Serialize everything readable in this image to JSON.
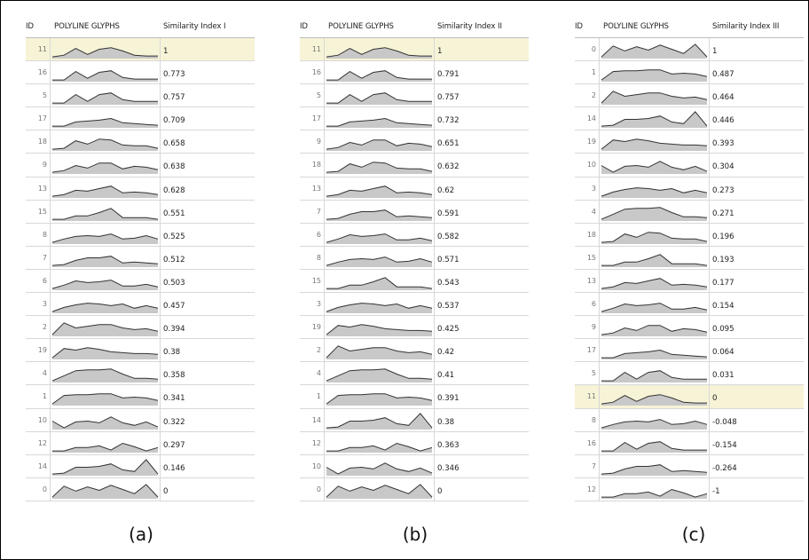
{
  "colors": {
    "glyph_fill": "#c8c8c8",
    "glyph_stroke": "#333333",
    "highlight": "#f7f3d6"
  },
  "panels": [
    {
      "caption": "(a)",
      "header": {
        "id": "ID",
        "glyphs": "POLYLINE GLYPHS",
        "similarity": "Similarity Index I"
      },
      "rows": [
        {
          "id": "11",
          "sim": "1",
          "hl": true
        },
        {
          "id": "16",
          "sim": "0.773"
        },
        {
          "id": "5",
          "sim": "0.757"
        },
        {
          "id": "17",
          "sim": "0.709"
        },
        {
          "id": "18",
          "sim": "0.658"
        },
        {
          "id": "9",
          "sim": "0.638"
        },
        {
          "id": "13",
          "sim": "0.628"
        },
        {
          "id": "15",
          "sim": "0.551"
        },
        {
          "id": "8",
          "sim": "0.525"
        },
        {
          "id": "7",
          "sim": "0.512"
        },
        {
          "id": "6",
          "sim": "0.503"
        },
        {
          "id": "3",
          "sim": "0.457"
        },
        {
          "id": "2",
          "sim": "0.394"
        },
        {
          "id": "19",
          "sim": "0.38"
        },
        {
          "id": "4",
          "sim": "0.358"
        },
        {
          "id": "1",
          "sim": "0.341"
        },
        {
          "id": "10",
          "sim": "0.322"
        },
        {
          "id": "12",
          "sim": "0.297"
        },
        {
          "id": "14",
          "sim": "0.146"
        },
        {
          "id": "0",
          "sim": "0"
        }
      ]
    },
    {
      "caption": "(b)",
      "header": {
        "id": "ID",
        "glyphs": "POLYLINE GLYPHS",
        "similarity": "Similarity Index II"
      },
      "rows": [
        {
          "id": "11",
          "sim": "1",
          "hl": true
        },
        {
          "id": "16",
          "sim": "0.791"
        },
        {
          "id": "5",
          "sim": "0.757"
        },
        {
          "id": "17",
          "sim": "0.732"
        },
        {
          "id": "9",
          "sim": "0.651"
        },
        {
          "id": "18",
          "sim": "0.632"
        },
        {
          "id": "13",
          "sim": "0.62"
        },
        {
          "id": "7",
          "sim": "0.591"
        },
        {
          "id": "6",
          "sim": "0.582"
        },
        {
          "id": "8",
          "sim": "0.571"
        },
        {
          "id": "15",
          "sim": "0.543"
        },
        {
          "id": "3",
          "sim": "0.537"
        },
        {
          "id": "19",
          "sim": "0.425"
        },
        {
          "id": "2",
          "sim": "0.42"
        },
        {
          "id": "4",
          "sim": "0.41"
        },
        {
          "id": "1",
          "sim": "0.391"
        },
        {
          "id": "14",
          "sim": "0.38"
        },
        {
          "id": "12",
          "sim": "0.363"
        },
        {
          "id": "10",
          "sim": "0.346"
        },
        {
          "id": "0",
          "sim": "0"
        }
      ]
    },
    {
      "caption": "(c)",
      "header": {
        "id": "ID",
        "glyphs": "POLYLINE GLYPHS",
        "similarity": "Similarity Index III"
      },
      "rows": [
        {
          "id": "0",
          "sim": "1"
        },
        {
          "id": "1",
          "sim": "0.487"
        },
        {
          "id": "2",
          "sim": "0.464"
        },
        {
          "id": "14",
          "sim": "0.446"
        },
        {
          "id": "19",
          "sim": "0.393"
        },
        {
          "id": "10",
          "sim": "0.304"
        },
        {
          "id": "3",
          "sim": "0.273"
        },
        {
          "id": "4",
          "sim": "0.271"
        },
        {
          "id": "18",
          "sim": "0.196"
        },
        {
          "id": "15",
          "sim": "0.193"
        },
        {
          "id": "13",
          "sim": "0.177"
        },
        {
          "id": "6",
          "sim": "0.154"
        },
        {
          "id": "9",
          "sim": "0.095"
        },
        {
          "id": "17",
          "sim": "0.064"
        },
        {
          "id": "5",
          "sim": "0.031"
        },
        {
          "id": "11",
          "sim": "0",
          "hl": true
        },
        {
          "id": "8",
          "sim": "-0.048"
        },
        {
          "id": "16",
          "sim": "-0.154"
        },
        {
          "id": "7",
          "sim": "-0.264"
        },
        {
          "id": "12",
          "sim": "-1"
        }
      ]
    }
  ],
  "glyphs": {
    "0": [
      0.1,
      0.75,
      0.45,
      0.7,
      0.5,
      0.8,
      0.55,
      0.3,
      0.85,
      0.1
    ],
    "1": [
      0.1,
      0.6,
      0.65,
      0.65,
      0.7,
      0.7,
      0.45,
      0.5,
      0.45,
      0.3
    ],
    "2": [
      0.1,
      0.8,
      0.5,
      0.6,
      0.7,
      0.7,
      0.5,
      0.4,
      0.45,
      0.3
    ],
    "3": [
      0.1,
      0.35,
      0.5,
      0.6,
      0.55,
      0.45,
      0.55,
      0.3,
      0.45,
      0.3
    ],
    "4": [
      0.1,
      0.4,
      0.7,
      0.75,
      0.75,
      0.8,
      0.5,
      0.25,
      0.25,
      0.2
    ],
    "5": [
      0.1,
      0.1,
      0.6,
      0.2,
      0.6,
      0.7,
      0.3,
      0.2,
      0.2,
      0.2
    ],
    "6": [
      0.1,
      0.3,
      0.55,
      0.45,
      0.5,
      0.6,
      0.25,
      0.25,
      0.35,
      0.2
    ],
    "7": [
      0.1,
      0.15,
      0.4,
      0.55,
      0.55,
      0.65,
      0.25,
      0.3,
      0.25,
      0.2
    ],
    "8": [
      0.1,
      0.3,
      0.45,
      0.5,
      0.45,
      0.6,
      0.3,
      0.35,
      0.5,
      0.3
    ],
    "9": [
      0.1,
      0.2,
      0.5,
      0.35,
      0.65,
      0.65,
      0.3,
      0.45,
      0.4,
      0.25
    ],
    "10": [
      0.5,
      0.1,
      0.45,
      0.5,
      0.4,
      0.75,
      0.4,
      0.25,
      0.45,
      0.15
    ],
    "11": [
      0.1,
      0.2,
      0.6,
      0.25,
      0.55,
      0.65,
      0.45,
      0.2,
      0.15,
      0.15
    ],
    "12": [
      0.1,
      0.1,
      0.3,
      0.3,
      0.4,
      0.15,
      0.55,
      0.35,
      0.1,
      0.3
    ],
    "13": [
      0.1,
      0.2,
      0.45,
      0.4,
      0.55,
      0.7,
      0.3,
      0.35,
      0.3,
      0.2
    ],
    "14": [
      0.1,
      0.15,
      0.5,
      0.5,
      0.55,
      0.7,
      0.35,
      0.25,
      0.95,
      0.1
    ],
    "15": [
      0.1,
      0.1,
      0.3,
      0.3,
      0.5,
      0.75,
      0.2,
      0.2,
      0.2,
      0.1
    ],
    "16": [
      0.1,
      0.1,
      0.6,
      0.2,
      0.55,
      0.65,
      0.25,
      0.15,
      0.15,
      0.15
    ],
    "17": [
      0.1,
      0.1,
      0.35,
      0.4,
      0.45,
      0.55,
      0.3,
      0.25,
      0.2,
      0.15
    ],
    "18": [
      0.1,
      0.15,
      0.6,
      0.4,
      0.7,
      0.65,
      0.35,
      0.3,
      0.3,
      0.15
    ],
    "19": [
      0.1,
      0.65,
      0.55,
      0.7,
      0.6,
      0.45,
      0.4,
      0.35,
      0.35,
      0.3
    ]
  }
}
